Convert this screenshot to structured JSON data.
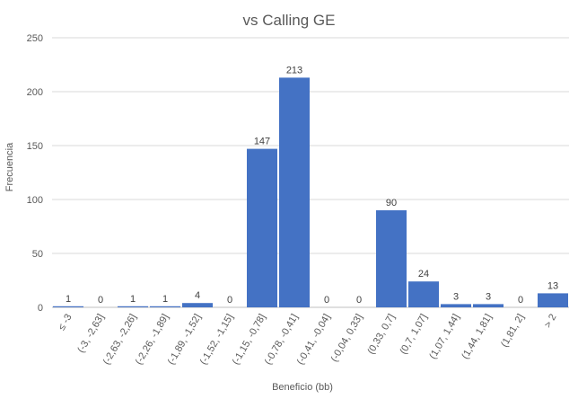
{
  "chart_data": {
    "type": "bar",
    "title": "vs Calling GE",
    "xlabel": "Beneficio (bb)",
    "ylabel": "Frecuencia",
    "ylim": [
      0,
      250
    ],
    "yticks": [
      "0",
      "50",
      "100",
      "150",
      "200",
      "250"
    ],
    "grid": true,
    "legend": "none",
    "categories": [
      "≤ -3",
      "(-3, -2,63]",
      "(-2,63, -2,26]",
      "(-2,26, -1,89]",
      "(-1,89, -1,52]",
      "(-1,52, -1,15]",
      "(-1,15, -0,78]",
      "(-0,78, -0,41]",
      "(-0,41, -0,04]",
      "(-0,04, 0,33]",
      "(0,33, 0,7]",
      "(0,7, 1,07]",
      "(1,07, 1,44]",
      "(1,44, 1,81]",
      "(1,81, 2]",
      "> 2"
    ],
    "values": [
      1,
      0,
      1,
      1,
      4,
      0,
      147,
      213,
      0,
      0,
      90,
      24,
      3,
      3,
      0,
      13
    ],
    "data_labels": [
      "1",
      "0",
      "1",
      "1",
      "4",
      "0",
      "147",
      "213",
      "0",
      "0",
      "90",
      "24",
      "3",
      "3",
      "0",
      "13"
    ],
    "bar_color": "#4472C4",
    "grid_color": "#D9D9D9",
    "text_color": "#595959"
  }
}
